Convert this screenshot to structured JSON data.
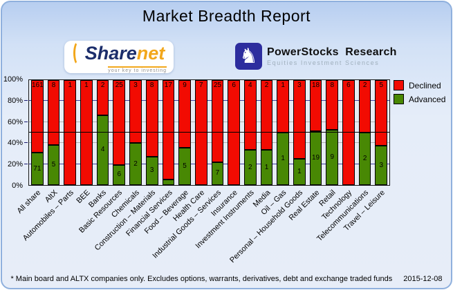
{
  "title": "Market Breadth Report",
  "logos": {
    "sharenet": {
      "part1": "Share",
      "part2": "net",
      "tagline": "your key to investing"
    },
    "powerstocks": {
      "name": "PowerStocks  Research",
      "subtitle": "Equities Investment Sciences"
    }
  },
  "chart_data": {
    "type": "bar",
    "variant": "stacked-percent",
    "title": "Market Breadth Report",
    "categories": [
      "All share",
      "AltX",
      "Automobiles – Parts",
      "BEE",
      "Banks",
      "Basic Resources",
      "Chemicals",
      "Construction – Materials",
      "Financial Services",
      "Food – Beverage",
      "Health Care",
      "Industrial Goods – Services",
      "Insurance",
      "Investment Instruments",
      "Media",
      "Oil – Gas",
      "Personal – Household Goods",
      "Real Estate",
      "Retail",
      "Technology",
      "Telecommunications",
      "Travel – Leisure"
    ],
    "series": [
      {
        "name": "Declined",
        "color": "#f20b02",
        "values": [
          161,
          8,
          1,
          1,
          2,
          25,
          3,
          8,
          17,
          9,
          7,
          25,
          6,
          4,
          2,
          1,
          3,
          18,
          8,
          6,
          2,
          5
        ]
      },
      {
        "name": "Advanced",
        "color": "#488804",
        "values": [
          71,
          5,
          0,
          0,
          4,
          6,
          2,
          3,
          1,
          5,
          0,
          7,
          0,
          2,
          1,
          1,
          1,
          19,
          9,
          0,
          2,
          3
        ]
      }
    ],
    "y_ticks": [
      "0%",
      "20%",
      "40%",
      "60%",
      "80%",
      "100%"
    ],
    "ylim": [
      0,
      100
    ],
    "gridlines": [
      {
        "pct": 20,
        "color": "#3d3d9c"
      },
      {
        "pct": 40,
        "color": "#b0b0b0"
      },
      {
        "pct": 60,
        "color": "#b0b0b0"
      },
      {
        "pct": 80,
        "color": "#3d3d9c"
      }
    ],
    "reference_line_pct": 50,
    "legend_position": "top-right",
    "min_label_pct": 8
  },
  "footer": {
    "note": "* Main board and ALTX companies only. Excludes options, warrants, derivatives, debt and exchange traded funds",
    "date": "2015-12-08"
  }
}
